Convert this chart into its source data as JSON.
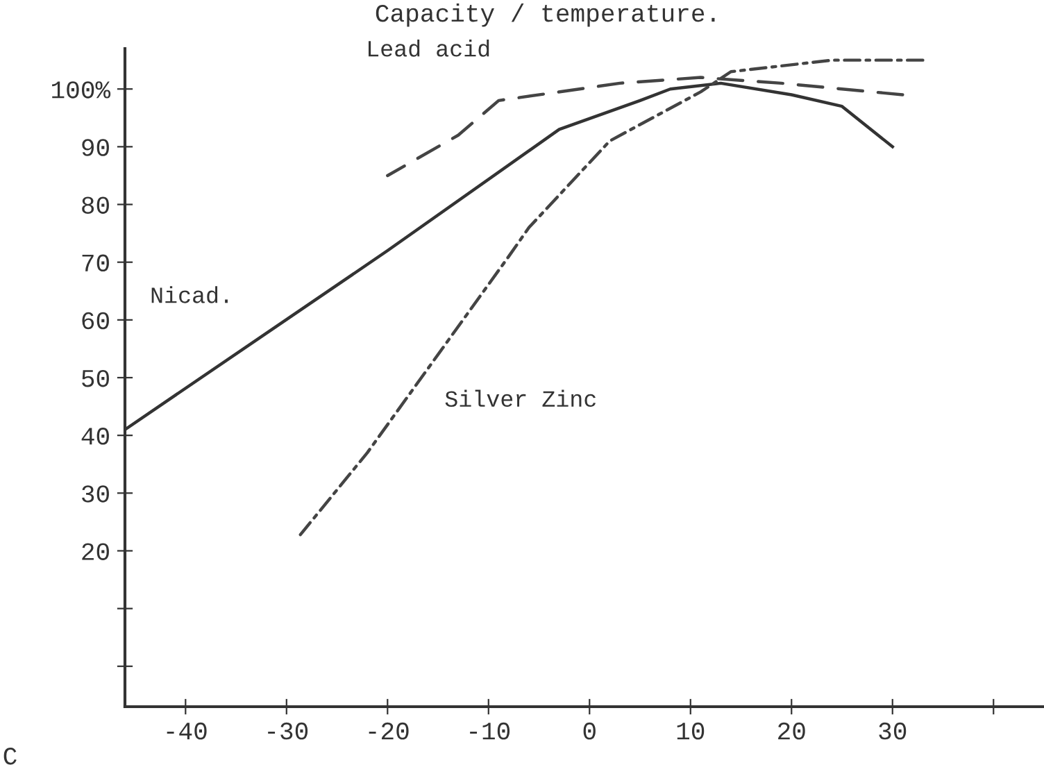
{
  "chart_data": {
    "type": "line",
    "title": "Capacity / temperature.",
    "xlabel": "C",
    "series": [
      {
        "name": "Nicad.",
        "color": "#333333",
        "line_style": "solid",
        "x": [
          -46,
          -20,
          -3,
          5,
          8,
          13,
          20,
          25,
          30
        ],
        "values": [
          41,
          72,
          93,
          98,
          100,
          101,
          99,
          97,
          90
        ]
      },
      {
        "name": "Lead acid",
        "color": "#444444",
        "line_style": "dashed",
        "x": [
          -20,
          -13,
          -9,
          3,
          11,
          19,
          25,
          31
        ],
        "values": [
          85,
          92,
          98,
          101,
          102,
          101,
          100,
          99
        ]
      },
      {
        "name": "Silver Zinc",
        "color": "#444444",
        "line_style": "dashdot",
        "x": [
          -29,
          -22,
          -8,
          -6,
          2,
          11,
          14,
          24,
          33
        ],
        "values": [
          22,
          37,
          71,
          76,
          91,
          99.5,
          103,
          105,
          105
        ]
      }
    ],
    "xlim": [
      -46,
      45
    ],
    "ylim": [
      -7,
      107
    ],
    "xticks": [
      -40,
      -30,
      -20,
      -10,
      0,
      10,
      20,
      30,
      {
        "value": 40,
        "label": null
      }
    ],
    "yticks": [
      {
        "value": 0,
        "label": null
      },
      {
        "value": 10,
        "label": null
      },
      20,
      30,
      40,
      50,
      60,
      70,
      80,
      90,
      {
        "value": 100,
        "label": "100%"
      }
    ],
    "grid": false,
    "legend": false
  }
}
